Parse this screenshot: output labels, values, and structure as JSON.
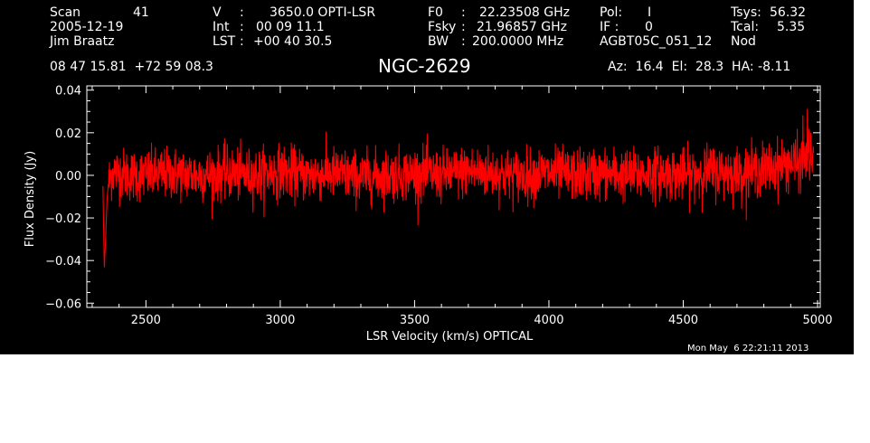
{
  "header": {
    "col1": {
      "scan_label": "Scan",
      "scan_value": "41",
      "date": "2005-12-19",
      "observer": "Jim Braatz"
    },
    "col2": {
      "v_label": "V",
      "v_value": "3650.0 OPTI-LSR",
      "int_label": "Int",
      "int_value": "00 09 11.1",
      "lst_label": "LST",
      "lst_value": "+00 40 30.5"
    },
    "col3": {
      "f0_label": "F0",
      "f0_value": "22.23508 GHz",
      "fsky_label": "Fsky",
      "fsky_value": "21.96857 GHz",
      "bw_label": "BW",
      "bw_value": "200.0000 MHz"
    },
    "col4": {
      "pol_label": "Pol:",
      "pol_value": "I",
      "if_label": "IF :",
      "if_value": "0",
      "project": "AGBT05C_051_12",
      "mode": "Nod"
    },
    "col5": {
      "tsys_label": "Tsys:",
      "tsys_value": "56.32",
      "tcal_label": "Tcal:",
      "tcal_value": "5.35"
    },
    "coords": "08 47 15.81  +72 59 08.3",
    "source": "NGC-2629",
    "pointing": "Az:  16.4  El:  28.3  HA: -8.11",
    "timestamp": "Mon May  6 22:21:11 2013"
  },
  "chart_data": {
    "type": "line",
    "xlabel": "LSR Velocity (km/s) OPTICAL",
    "ylabel": "Flux Density (Jy)",
    "xlim": [
      2280,
      5010
    ],
    "ylim": [
      -0.062,
      0.042
    ],
    "x_ticks": [
      2500,
      3000,
      3500,
      4000,
      4500,
      5000
    ],
    "y_ticks": [
      -0.06,
      -0.04,
      -0.02,
      0.0,
      0.02,
      0.04
    ],
    "x_tick_labels": [
      "2500",
      "3000",
      "3500",
      "4000",
      "4500",
      "5000"
    ],
    "y_tick_labels": [
      "−0.06",
      "−0.04",
      "−0.02",
      "0.00",
      "0.02",
      "0.04"
    ],
    "series": [
      {
        "color": "#ff0000",
        "x": [
          2340,
          2345,
          2350,
          2355,
          2360,
          2370,
          2380,
          2400,
          2450,
          2500,
          2600,
          2700,
          2800,
          2900,
          3000,
          3100,
          3200,
          3300,
          3400,
          3500,
          3600,
          3700,
          3800,
          3900,
          4000,
          4100,
          4200,
          4300,
          4400,
          4500,
          4600,
          4700,
          4800,
          4850,
          4900,
          4930,
          4950,
          4970,
          4985
        ],
        "y": [
          -0.005,
          -0.043,
          -0.03,
          -0.012,
          -0.004,
          0.0,
          0.002,
          0.001,
          0.0,
          0.0,
          0.001,
          0.0,
          0.001,
          0.0,
          0.002,
          0.0,
          0.001,
          -0.001,
          0.0,
          0.001,
          0.0,
          0.002,
          0.001,
          0.0,
          0.001,
          0.0,
          0.001,
          0.0,
          0.001,
          0.0,
          0.002,
          0.001,
          0.003,
          0.004,
          0.006,
          0.005,
          0.007,
          0.01,
          0.004
        ],
        "noise_rms": 0.006,
        "extrema": [
          {
            "x": 2345,
            "y": -0.043
          },
          {
            "x": 4962,
            "y": 0.031
          },
          {
            "x": 4945,
            "y": 0.028
          }
        ]
      }
    ]
  }
}
